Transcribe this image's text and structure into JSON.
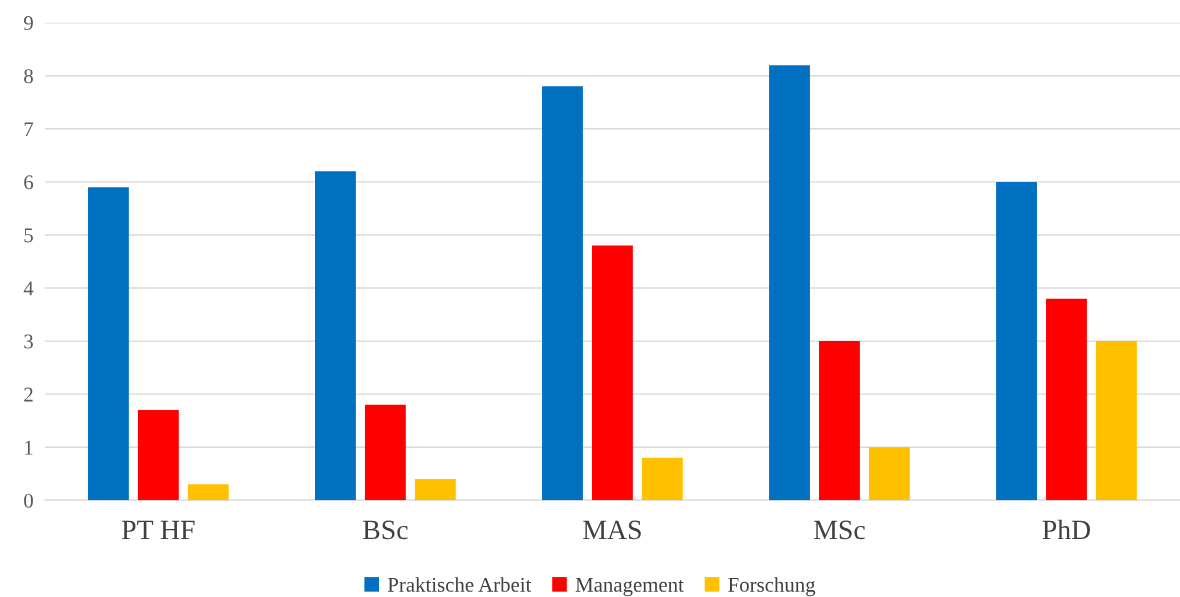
{
  "chart_data": {
    "type": "bar",
    "categories": [
      "PT HF",
      "BSc",
      "MAS",
      "MSc",
      "PhD"
    ],
    "series": [
      {
        "name": "Praktische Arbeit",
        "color": "#0070c0",
        "values": [
          5.9,
          6.2,
          7.8,
          8.2,
          6.0
        ]
      },
      {
        "name": "Management",
        "color": "#ff0000",
        "values": [
          1.7,
          1.8,
          4.8,
          3.0,
          3.8
        ]
      },
      {
        "name": "Forschung",
        "color": "#ffc000",
        "values": [
          0.3,
          0.4,
          0.8,
          1.0,
          3.0
        ]
      }
    ],
    "ylim": [
      0,
      9
    ],
    "yticks": [
      0,
      1,
      2,
      3,
      4,
      5,
      6,
      7,
      8,
      9
    ],
    "grid": "y",
    "legend": "bottom"
  }
}
